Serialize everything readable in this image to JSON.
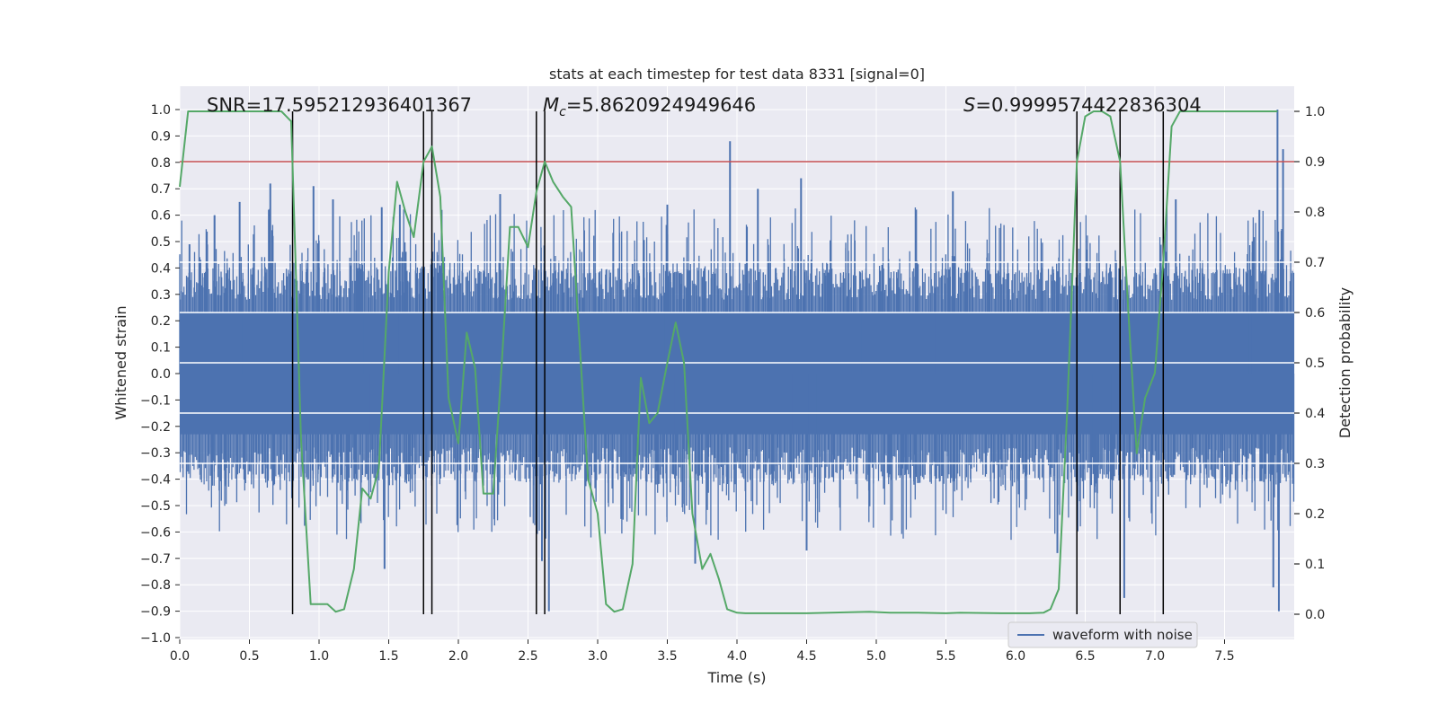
{
  "chart_data": {
    "type": "line",
    "title": "stats at each timestep for test data 8331 [signal=0]",
    "xlabel": "Time (s)",
    "ylabel": "Whitened strain",
    "y2label": "Detection probability",
    "xlim": [
      0.0,
      8.0
    ],
    "ylim": [
      -1.0,
      1.0
    ],
    "y2lim": [
      -0.05,
      1.05
    ],
    "x_ticks": [
      "0.0",
      "0.5",
      "1.0",
      "1.5",
      "2.0",
      "2.5",
      "3.0",
      "3.5",
      "4.0",
      "4.5",
      "5.0",
      "5.5",
      "6.0",
      "6.5",
      "7.0",
      "7.5"
    ],
    "y_ticks": [
      "1.0",
      "0.9",
      "0.8",
      "0.7",
      "0.6",
      "0.5",
      "0.4",
      "0.3",
      "0.2",
      "0.1",
      "0.0",
      "−0.1",
      "−0.2",
      "−0.3",
      "−0.4",
      "−0.5",
      "−0.6",
      "−0.7",
      "−0.8",
      "−0.9",
      "−1.0"
    ],
    "y2_ticks": [
      "1.0",
      "0.9",
      "0.8",
      "0.7",
      "0.6",
      "0.5",
      "0.4",
      "0.3",
      "0.2",
      "0.1",
      "0.0"
    ],
    "grid": true,
    "legend_position": "lower-right",
    "annotations": {
      "snr": "SNR=17.595212936401367",
      "mc_symbol": "M",
      "mc_subscript": "c",
      "mc_value": "=5.8620924949646",
      "s_symbol": "S",
      "s_value": "=0.9999574422836304"
    },
    "threshold_y2": 0.9,
    "event_lines_x": [
      0.81,
      1.75,
      1.81,
      2.56,
      2.62,
      6.44,
      6.75,
      7.06
    ],
    "event_line_y2_range": [
      0.0,
      1.0
    ],
    "series": [
      {
        "name": "waveform with noise",
        "axis": "left",
        "color": "#4c72b0",
        "description": "noise waveform, dense band roughly ±0.35 with spikes",
        "spike_points": [
          {
            "x": 0.07,
            "y": 0.49
          },
          {
            "x": 0.25,
            "y": 0.6
          },
          {
            "x": 0.43,
            "y": 0.65
          },
          {
            "x": 0.65,
            "y": 0.72
          },
          {
            "x": 0.96,
            "y": 0.71
          },
          {
            "x": 1.1,
            "y": 0.66
          },
          {
            "x": 1.45,
            "y": 0.63
          },
          {
            "x": 1.47,
            "y": -0.74
          },
          {
            "x": 1.58,
            "y": 0.64
          },
          {
            "x": 1.88,
            "y": 0.62
          },
          {
            "x": 2.3,
            "y": 0.68
          },
          {
            "x": 2.6,
            "y": -0.71
          },
          {
            "x": 2.65,
            "y": -0.9
          },
          {
            "x": 3.5,
            "y": 0.64
          },
          {
            "x": 3.7,
            "y": -0.72
          },
          {
            "x": 3.95,
            "y": 0.88
          },
          {
            "x": 4.15,
            "y": 0.7
          },
          {
            "x": 4.46,
            "y": 0.74
          },
          {
            "x": 4.5,
            "y": -0.67
          },
          {
            "x": 5.55,
            "y": 0.69
          },
          {
            "x": 6.3,
            "y": -0.68
          },
          {
            "x": 6.78,
            "y": -0.85
          },
          {
            "x": 7.15,
            "y": 0.66
          },
          {
            "x": 7.75,
            "y": 0.62
          },
          {
            "x": 7.85,
            "y": -0.81
          },
          {
            "x": 7.88,
            "y": 1.0
          },
          {
            "x": 7.89,
            "y": -0.9
          },
          {
            "x": 7.92,
            "y": 0.85
          }
        ]
      },
      {
        "name": "",
        "axis": "right",
        "color": "#55a868",
        "x": [
          0.0,
          0.06,
          0.2,
          0.4,
          0.6,
          0.73,
          0.8,
          0.87,
          0.94,
          1.0,
          1.06,
          1.12,
          1.18,
          1.25,
          1.31,
          1.37,
          1.43,
          1.5,
          1.56,
          1.62,
          1.68,
          1.75,
          1.81,
          1.87,
          1.93,
          2.0,
          2.06,
          2.12,
          2.18,
          2.25,
          2.31,
          2.37,
          2.43,
          2.5,
          2.56,
          2.62,
          2.68,
          2.75,
          2.81,
          2.87,
          2.93,
          3.0,
          3.06,
          3.12,
          3.18,
          3.25,
          3.31,
          3.37,
          3.43,
          3.5,
          3.56,
          3.62,
          3.68,
          3.75,
          3.81,
          3.87,
          3.93,
          4.0,
          4.06,
          4.2,
          4.5,
          4.8,
          4.95,
          5.1,
          5.3,
          5.5,
          5.6,
          5.9,
          6.1,
          6.2,
          6.25,
          6.31,
          6.37,
          6.44,
          6.5,
          6.56,
          6.62,
          6.68,
          6.75,
          6.81,
          6.87,
          6.93,
          7.0,
          7.06,
          7.12,
          7.18,
          7.3,
          7.5,
          7.7,
          7.88
        ],
        "y": [
          0.85,
          1.0,
          1.0,
          1.0,
          1.0,
          1.0,
          0.98,
          0.35,
          0.02,
          0.02,
          0.02,
          0.005,
          0.01,
          0.09,
          0.25,
          0.23,
          0.29,
          0.68,
          0.86,
          0.8,
          0.75,
          0.9,
          0.93,
          0.83,
          0.43,
          0.34,
          0.56,
          0.49,
          0.24,
          0.24,
          0.49,
          0.77,
          0.77,
          0.73,
          0.84,
          0.9,
          0.86,
          0.83,
          0.81,
          0.54,
          0.27,
          0.2,
          0.02,
          0.005,
          0.01,
          0.1,
          0.47,
          0.38,
          0.4,
          0.5,
          0.58,
          0.5,
          0.2,
          0.09,
          0.12,
          0.07,
          0.01,
          0.003,
          0.002,
          0.002,
          0.002,
          0.004,
          0.005,
          0.003,
          0.003,
          0.002,
          0.003,
          0.002,
          0.002,
          0.003,
          0.01,
          0.05,
          0.4,
          0.9,
          0.99,
          1.0,
          1.0,
          0.99,
          0.9,
          0.6,
          0.32,
          0.43,
          0.48,
          0.7,
          0.97,
          1.0,
          1.0,
          1.0,
          1.0,
          1.0
        ]
      }
    ],
    "colors": {
      "plot_background": "#eaeaf2",
      "grid": "#ffffff",
      "threshold": "#c44e52",
      "event_lines": "#000000"
    }
  }
}
